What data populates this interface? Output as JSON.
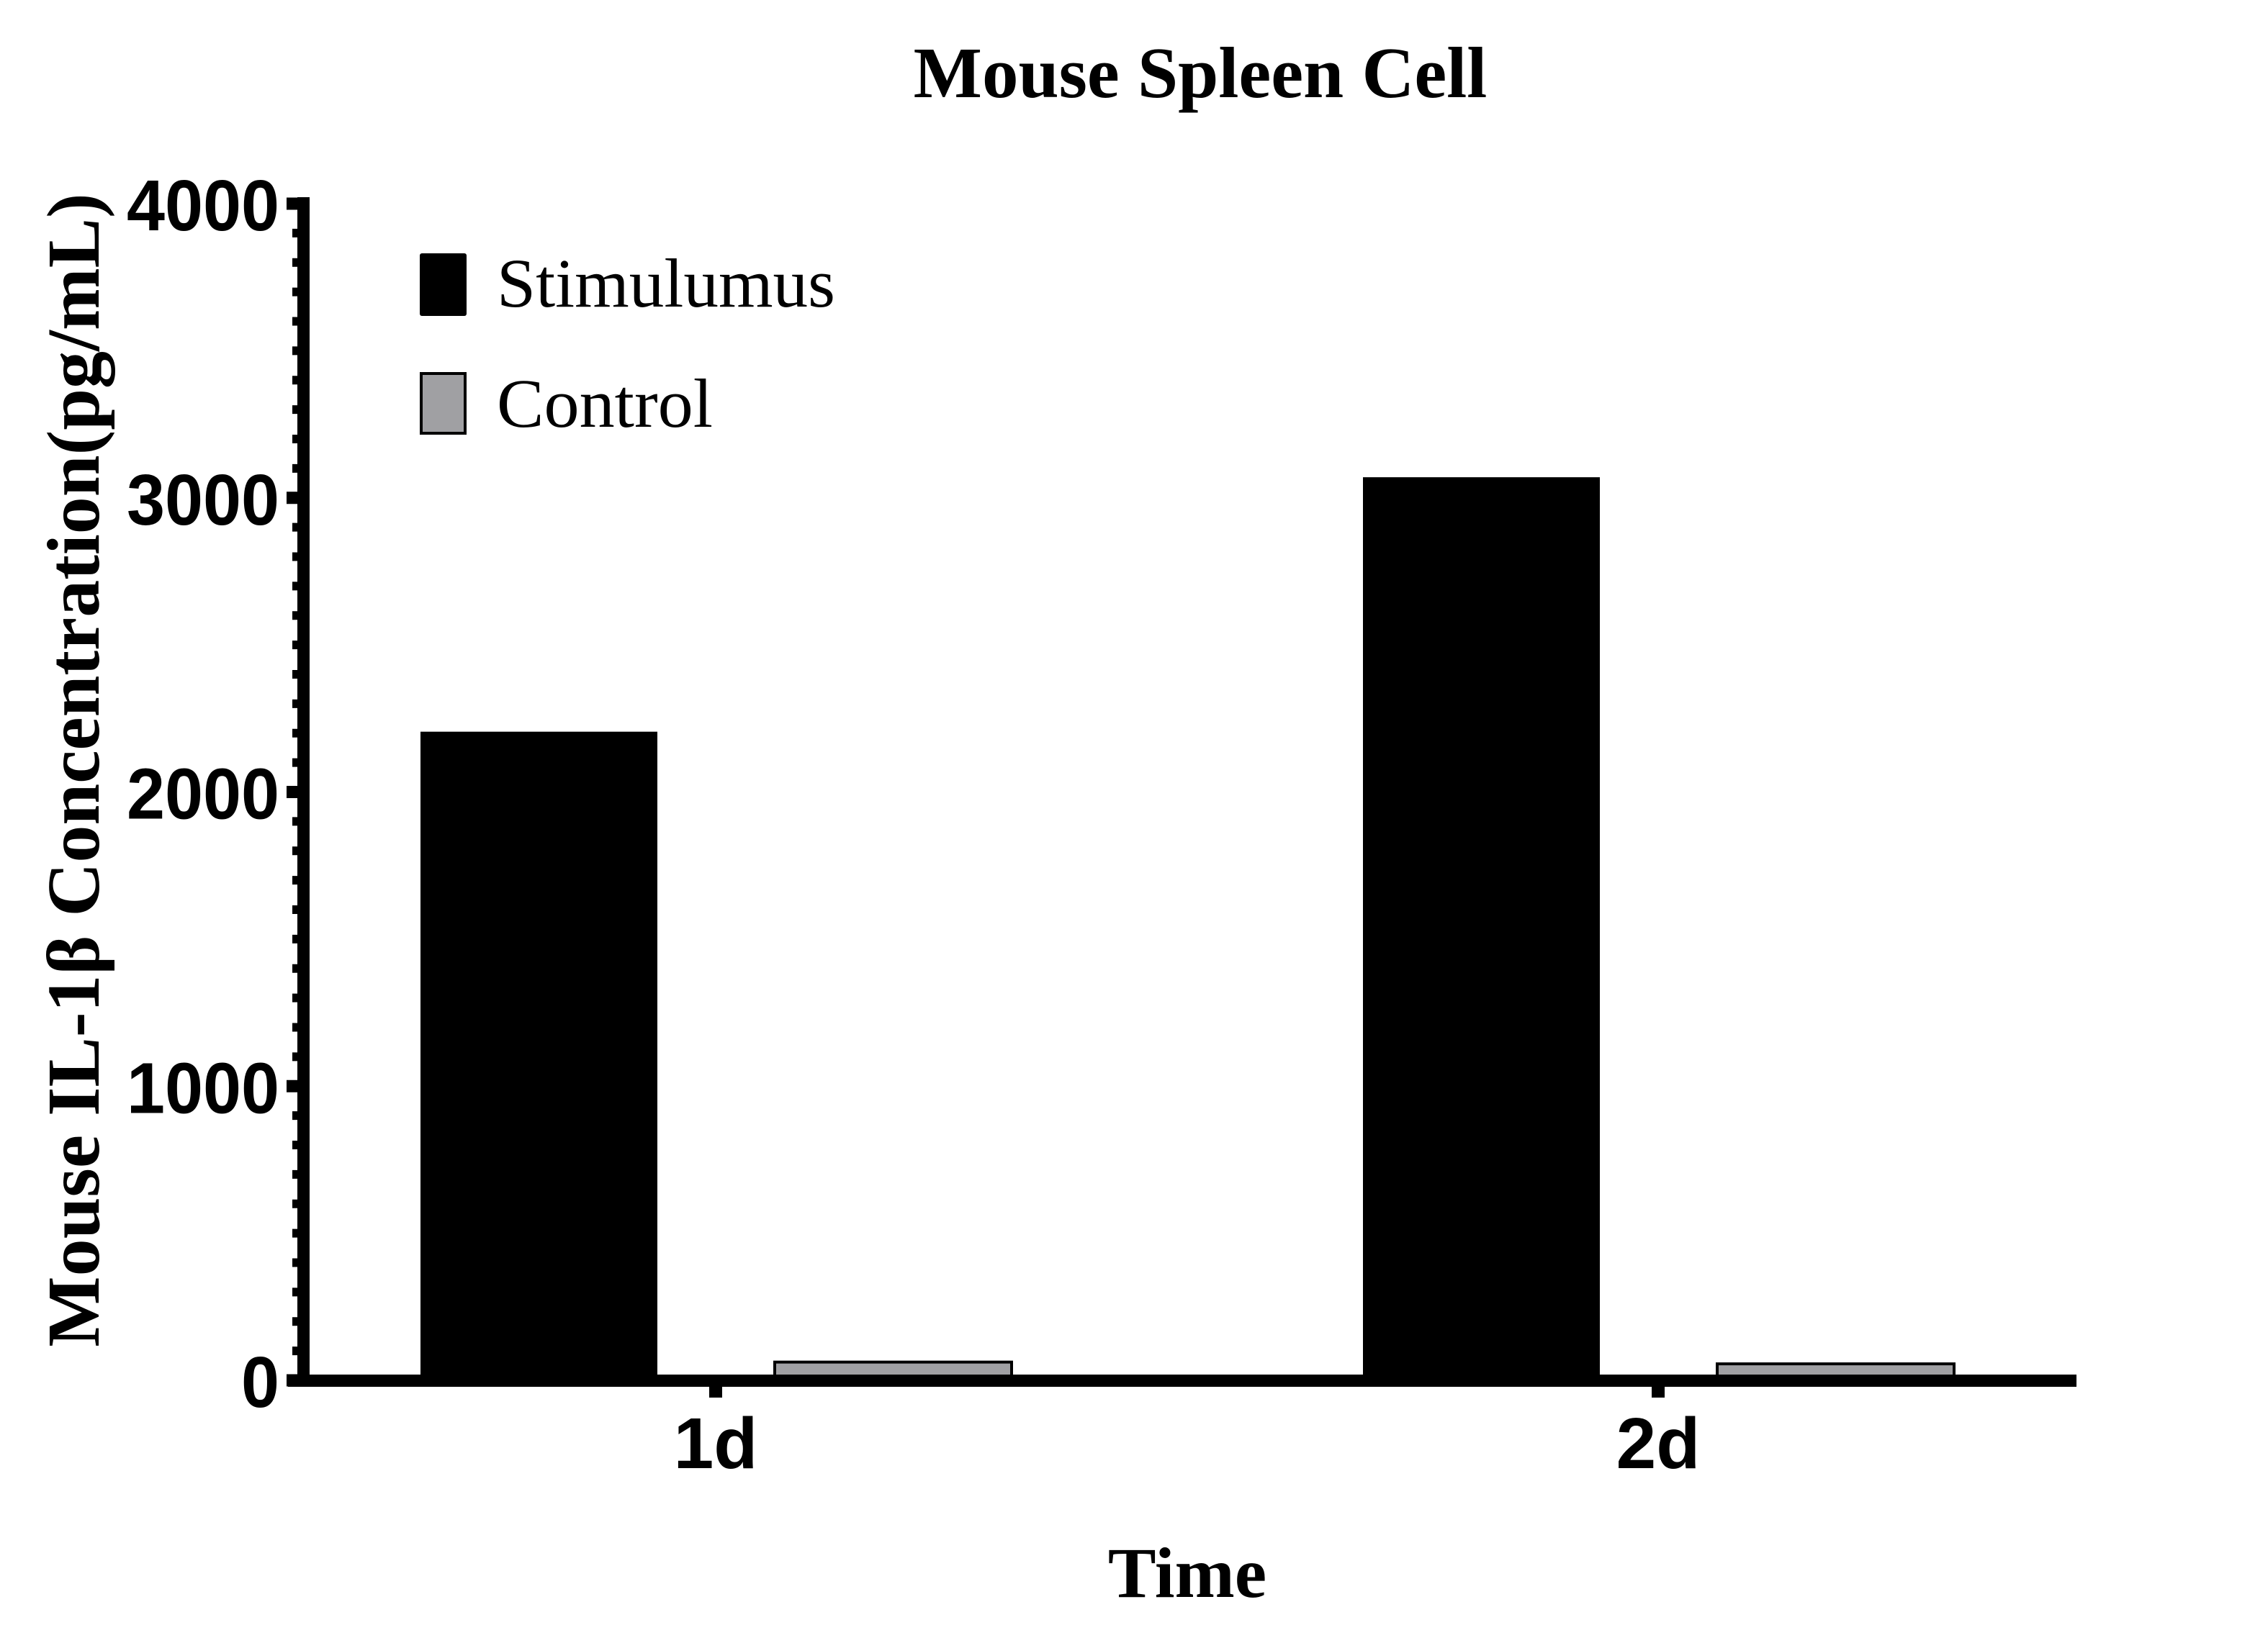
{
  "chart_data": {
    "type": "bar",
    "title": "Mouse Spleen Cell",
    "xlabel": "Time",
    "ylabel": "Mouse IL-1β Concentration(pg/mL)",
    "categories": [
      "1d",
      "2d"
    ],
    "series": [
      {
        "name": "Stimulumus",
        "color": "#000000",
        "values": [
          2205,
          3070
        ]
      },
      {
        "name": "Control",
        "color": "#a0a0a3",
        "values": [
          62,
          56
        ]
      }
    ],
    "ylim": [
      0,
      4000
    ],
    "yticks": [
      0,
      1000,
      2000,
      3000,
      4000
    ],
    "ytick_labels": [
      "0",
      "1000",
      "2000",
      "3000",
      "4000"
    ],
    "minor_tick_step": 100,
    "grid": false,
    "legend_position": "upper-left"
  }
}
